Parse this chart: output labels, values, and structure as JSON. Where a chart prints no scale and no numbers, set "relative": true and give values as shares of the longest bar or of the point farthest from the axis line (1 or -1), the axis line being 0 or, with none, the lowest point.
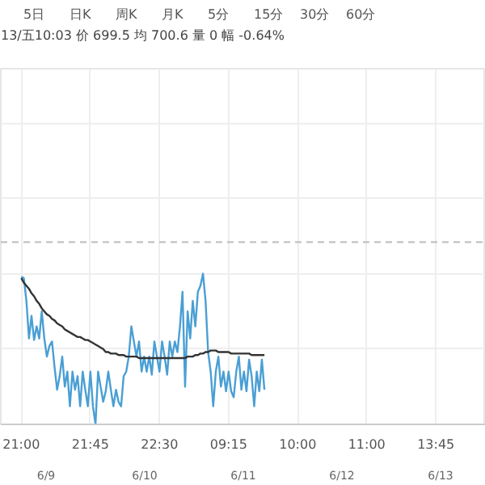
{
  "chart_data": {
    "type": "line",
    "relative": true,
    "subtitle": "13/五10:03 价 699.5 均 700.6 量 0 幅 -0.64%",
    "annotations": [
      "5日",
      "日K",
      "周K",
      "月K",
      "5分",
      "15分",
      "30分",
      "60分",
      "6/9",
      "6/10",
      "6/11",
      "6/12",
      "6/13"
    ],
    "categories": [
      "21:00",
      null,
      null,
      null,
      null,
      null,
      null,
      null,
      null,
      null,
      null,
      null,
      null,
      null,
      null,
      null,
      null,
      null,
      null,
      null,
      null,
      null,
      null,
      null,
      null,
      null,
      null,
      "21:45",
      null,
      null,
      null,
      null,
      null,
      null,
      null,
      null,
      null,
      null,
      null,
      null,
      null,
      null,
      null,
      null,
      null,
      null,
      null,
      null,
      null,
      null,
      null,
      null,
      null,
      null,
      "22:30",
      null,
      null,
      null,
      null,
      null,
      null,
      null,
      null,
      null,
      null,
      null,
      null,
      null,
      null,
      null,
      null,
      null,
      null,
      null,
      null,
      null,
      null,
      null,
      null,
      null,
      null,
      "09:15",
      null,
      null,
      null,
      null,
      null,
      null,
      null,
      null,
      null,
      null,
      null,
      null,
      null,
      null,
      null,
      null,
      null,
      null,
      null,
      null,
      null,
      null,
      null,
      null,
      null,
      null,
      "10:00",
      null,
      null,
      null,
      null,
      null,
      null,
      null,
      null,
      null,
      null,
      null,
      null,
      null,
      null,
      null,
      null,
      null,
      null,
      null,
      null,
      null,
      null,
      null,
      null,
      null,
      null,
      "11:00",
      null,
      null,
      null,
      null,
      null,
      null,
      null,
      null,
      null,
      null,
      null,
      null,
      null,
      null,
      null,
      null,
      null,
      null,
      null,
      null,
      null,
      null,
      null,
      null,
      null,
      null,
      "13:45",
      null,
      null,
      null,
      null,
      null,
      null,
      null,
      null,
      null,
      null,
      null,
      null,
      null,
      null,
      null,
      null,
      null,
      null,
      null
    ],
    "grid": true,
    "line_style": "solid",
    "ref_lines": [
      {
        "axis": "y",
        "value": 1.21,
        "label": null,
        "color": "#bbbbbb",
        "line_style": "dashed"
      }
    ],
    "series": [
      {
        "color": "#4a9fd4",
        "values": [
          0.98,
          0.97,
          0.82,
          0.57,
          0.72,
          0.56,
          0.65,
          0.57,
          0.75,
          0.57,
          0.45,
          0.52,
          0.55,
          0.38,
          0.23,
          0.32,
          0.45,
          0.25,
          0.35,
          0.12,
          0.35,
          0.23,
          0.32,
          0.12,
          0.35,
          0.23,
          0.12,
          0.35,
          0.12,
          0.0,
          0.35,
          0.25,
          0.15,
          0.22,
          0.35,
          0.23,
          0.12,
          0.23,
          0.15,
          0.12,
          0.32,
          0.35,
          0.45,
          0.65,
          0.55,
          0.45,
          0.55,
          0.35,
          0.45,
          0.35,
          0.45,
          0.33,
          0.55,
          0.45,
          0.35,
          0.55,
          0.45,
          0.33,
          0.55,
          0.45,
          0.55,
          0.48,
          0.65,
          0.88,
          0.25,
          0.75,
          0.57,
          0.82,
          0.65,
          0.88,
          0.92,
          1.0,
          0.82,
          0.48,
          0.35,
          0.12,
          0.35,
          0.45,
          0.25,
          0.35,
          0.22,
          0.35,
          0.22,
          0.18,
          0.35,
          0.45,
          0.23,
          0.35,
          0.22,
          0.43,
          0.32,
          0.12,
          0.35,
          0.22,
          0.43,
          0.23,
          null,
          null,
          null,
          null,
          null,
          null,
          null,
          null,
          null,
          null,
          null,
          null,
          null,
          null,
          null,
          null,
          null,
          null,
          null,
          null,
          null,
          null,
          null,
          null,
          null,
          null,
          null,
          null,
          null,
          null,
          null,
          null,
          null,
          null,
          null,
          null,
          null,
          null,
          null,
          null,
          null,
          null,
          null,
          null,
          null,
          null,
          null,
          null,
          null,
          null,
          null,
          null,
          null,
          null,
          null,
          null,
          null,
          null,
          null,
          null,
          null,
          null,
          null,
          null,
          null,
          null,
          null,
          null,
          null,
          null,
          null,
          null,
          null,
          null,
          null,
          null,
          null,
          null,
          null,
          null,
          null,
          null,
          null,
          null,
          null,
          null
        ]
      },
      {
        "color": "#333333",
        "values": [
          0.97,
          0.94,
          0.92,
          0.9,
          0.87,
          0.85,
          0.82,
          0.8,
          0.77,
          0.75,
          0.73,
          0.72,
          0.7,
          0.69,
          0.67,
          0.66,
          0.65,
          0.63,
          0.62,
          0.61,
          0.6,
          0.59,
          0.58,
          0.58,
          0.57,
          0.56,
          0.56,
          0.55,
          0.54,
          0.53,
          0.52,
          0.51,
          0.5,
          0.48,
          0.48,
          0.47,
          0.47,
          0.47,
          0.46,
          0.46,
          0.46,
          0.45,
          0.45,
          0.45,
          0.45,
          0.45,
          0.44,
          0.44,
          0.44,
          0.44,
          0.44,
          0.44,
          0.44,
          0.44,
          0.44,
          0.44,
          0.44,
          0.44,
          0.44,
          0.44,
          0.44,
          0.44,
          0.44,
          0.44,
          0.44,
          0.45,
          0.45,
          0.45,
          0.46,
          0.46,
          0.47,
          0.47,
          0.48,
          0.48,
          0.49,
          0.49,
          0.49,
          0.48,
          0.48,
          0.48,
          0.48,
          0.48,
          0.47,
          0.47,
          0.47,
          0.47,
          0.47,
          0.47,
          0.47,
          0.47,
          0.46,
          0.46,
          0.46,
          0.46,
          0.46,
          0.46,
          null,
          null,
          null,
          null,
          null,
          null,
          null,
          null,
          null,
          null,
          null,
          null,
          null,
          null,
          null,
          null,
          null,
          null,
          null,
          null,
          null,
          null,
          null,
          null,
          null,
          null,
          null,
          null,
          null,
          null,
          null,
          null,
          null,
          null,
          null,
          null,
          null,
          null,
          null,
          null,
          null,
          null,
          null,
          null,
          null,
          null,
          null,
          null,
          null,
          null,
          null,
          null,
          null,
          null,
          null,
          null,
          null,
          null,
          null,
          null,
          null,
          null,
          null,
          null,
          null,
          null,
          null,
          null,
          null,
          null,
          null,
          null,
          null,
          null,
          null,
          null,
          null,
          null,
          null,
          null,
          null,
          null,
          null,
          null,
          null,
          null
        ]
      }
    ]
  }
}
